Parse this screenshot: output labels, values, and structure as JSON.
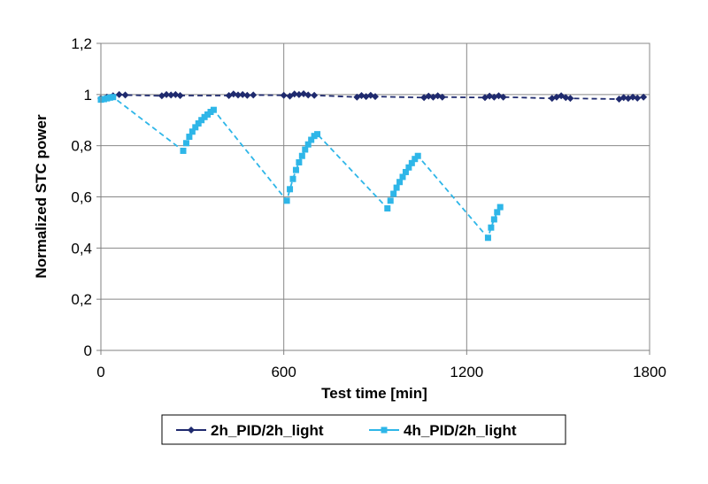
{
  "chart_data": {
    "type": "line",
    "title": "",
    "xlabel": "Test time [min]",
    "ylabel": "Normalized STC power",
    "xlim": [
      0,
      1800
    ],
    "ylim": [
      0,
      1.2
    ],
    "x_ticks": [
      0,
      600,
      1200,
      1800
    ],
    "x_tick_labels": [
      "0",
      "600",
      "1200",
      "1800"
    ],
    "y_ticks": [
      0,
      0.2,
      0.4,
      0.6,
      0.8,
      1.0,
      1.2
    ],
    "y_tick_labels": [
      "0",
      "0,2",
      "0,4",
      "0,6",
      "0,8",
      "1",
      "1,2"
    ],
    "grid": "vertical",
    "legend_position": "bottom",
    "series": [
      {
        "name": "2h_PID/2h_light",
        "color": "#1F2A6E",
        "marker": "diamond",
        "line_style": "dashed",
        "x": [
          0,
          20,
          40,
          60,
          80,
          200,
          215,
          230,
          245,
          260,
          420,
          435,
          450,
          465,
          480,
          500,
          600,
          620,
          635,
          650,
          665,
          680,
          700,
          840,
          855,
          870,
          885,
          900,
          1060,
          1075,
          1090,
          1105,
          1120,
          1260,
          1275,
          1290,
          1305,
          1320,
          1480,
          1495,
          1510,
          1525,
          1540,
          1700,
          1715,
          1730,
          1745,
          1760,
          1780
        ],
        "y": [
          0.985,
          0.99,
          0.995,
          1.0,
          0.998,
          0.995,
          1.0,
          0.998,
          1.0,
          0.996,
          0.996,
          1.002,
          0.998,
          1.0,
          0.997,
          0.998,
          0.997,
          0.994,
          1.002,
          1.0,
          1.003,
          0.998,
          0.997,
          0.99,
          0.996,
          0.992,
          0.997,
          0.992,
          0.988,
          0.994,
          0.99,
          0.995,
          0.99,
          0.988,
          0.994,
          0.99,
          0.995,
          0.99,
          0.985,
          0.99,
          0.995,
          0.988,
          0.985,
          0.982,
          0.988,
          0.985,
          0.99,
          0.986,
          0.99
        ]
      },
      {
        "name": "4h_PID/2h_light",
        "color": "#2EB6E8",
        "marker": "square",
        "line_style": "dashed",
        "x": [
          0,
          10,
          20,
          30,
          40,
          270,
          280,
          290,
          300,
          310,
          320,
          330,
          340,
          350,
          360,
          370,
          610,
          620,
          630,
          640,
          650,
          660,
          670,
          680,
          690,
          700,
          710,
          940,
          950,
          960,
          970,
          980,
          990,
          1000,
          1010,
          1020,
          1030,
          1040,
          1270,
          1280,
          1290,
          1300,
          1310
        ],
        "y": [
          0.98,
          0.982,
          0.985,
          0.988,
          0.99,
          0.78,
          0.81,
          0.835,
          0.855,
          0.872,
          0.887,
          0.9,
          0.912,
          0.922,
          0.932,
          0.94,
          0.585,
          0.63,
          0.67,
          0.705,
          0.735,
          0.76,
          0.785,
          0.805,
          0.823,
          0.838,
          0.845,
          0.555,
          0.585,
          0.612,
          0.636,
          0.658,
          0.678,
          0.697,
          0.715,
          0.732,
          0.748,
          0.76,
          0.44,
          0.48,
          0.512,
          0.54,
          0.56
        ]
      }
    ]
  }
}
